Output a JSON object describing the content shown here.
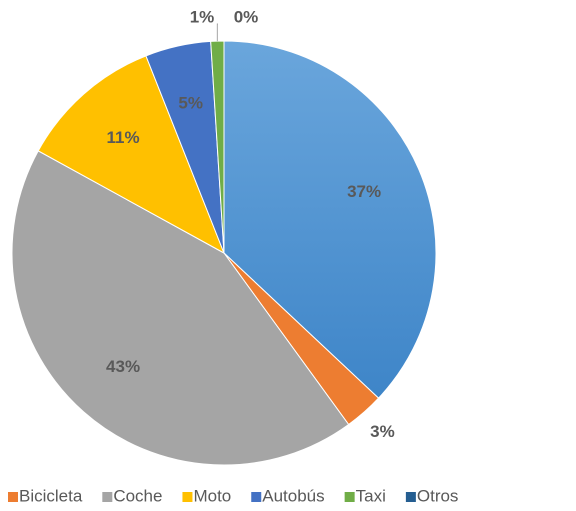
{
  "chart_data": {
    "type": "pie",
    "categories": [
      null,
      "Bicicleta",
      "Coche",
      "Moto",
      "Autobús",
      "Taxi",
      "Otros"
    ],
    "values": [
      37,
      3,
      43,
      11,
      5,
      1,
      0
    ],
    "value_labels": [
      "37%",
      "3%",
      "43%",
      "11%",
      "5%",
      "1%",
      "0%"
    ],
    "colors": [
      "#5b9bd5",
      "#ed7d31",
      "#a5a5a5",
      "#ffc000",
      "#4472c4",
      "#70ad47",
      "#255e91"
    ],
    "legend": "bottom"
  }
}
